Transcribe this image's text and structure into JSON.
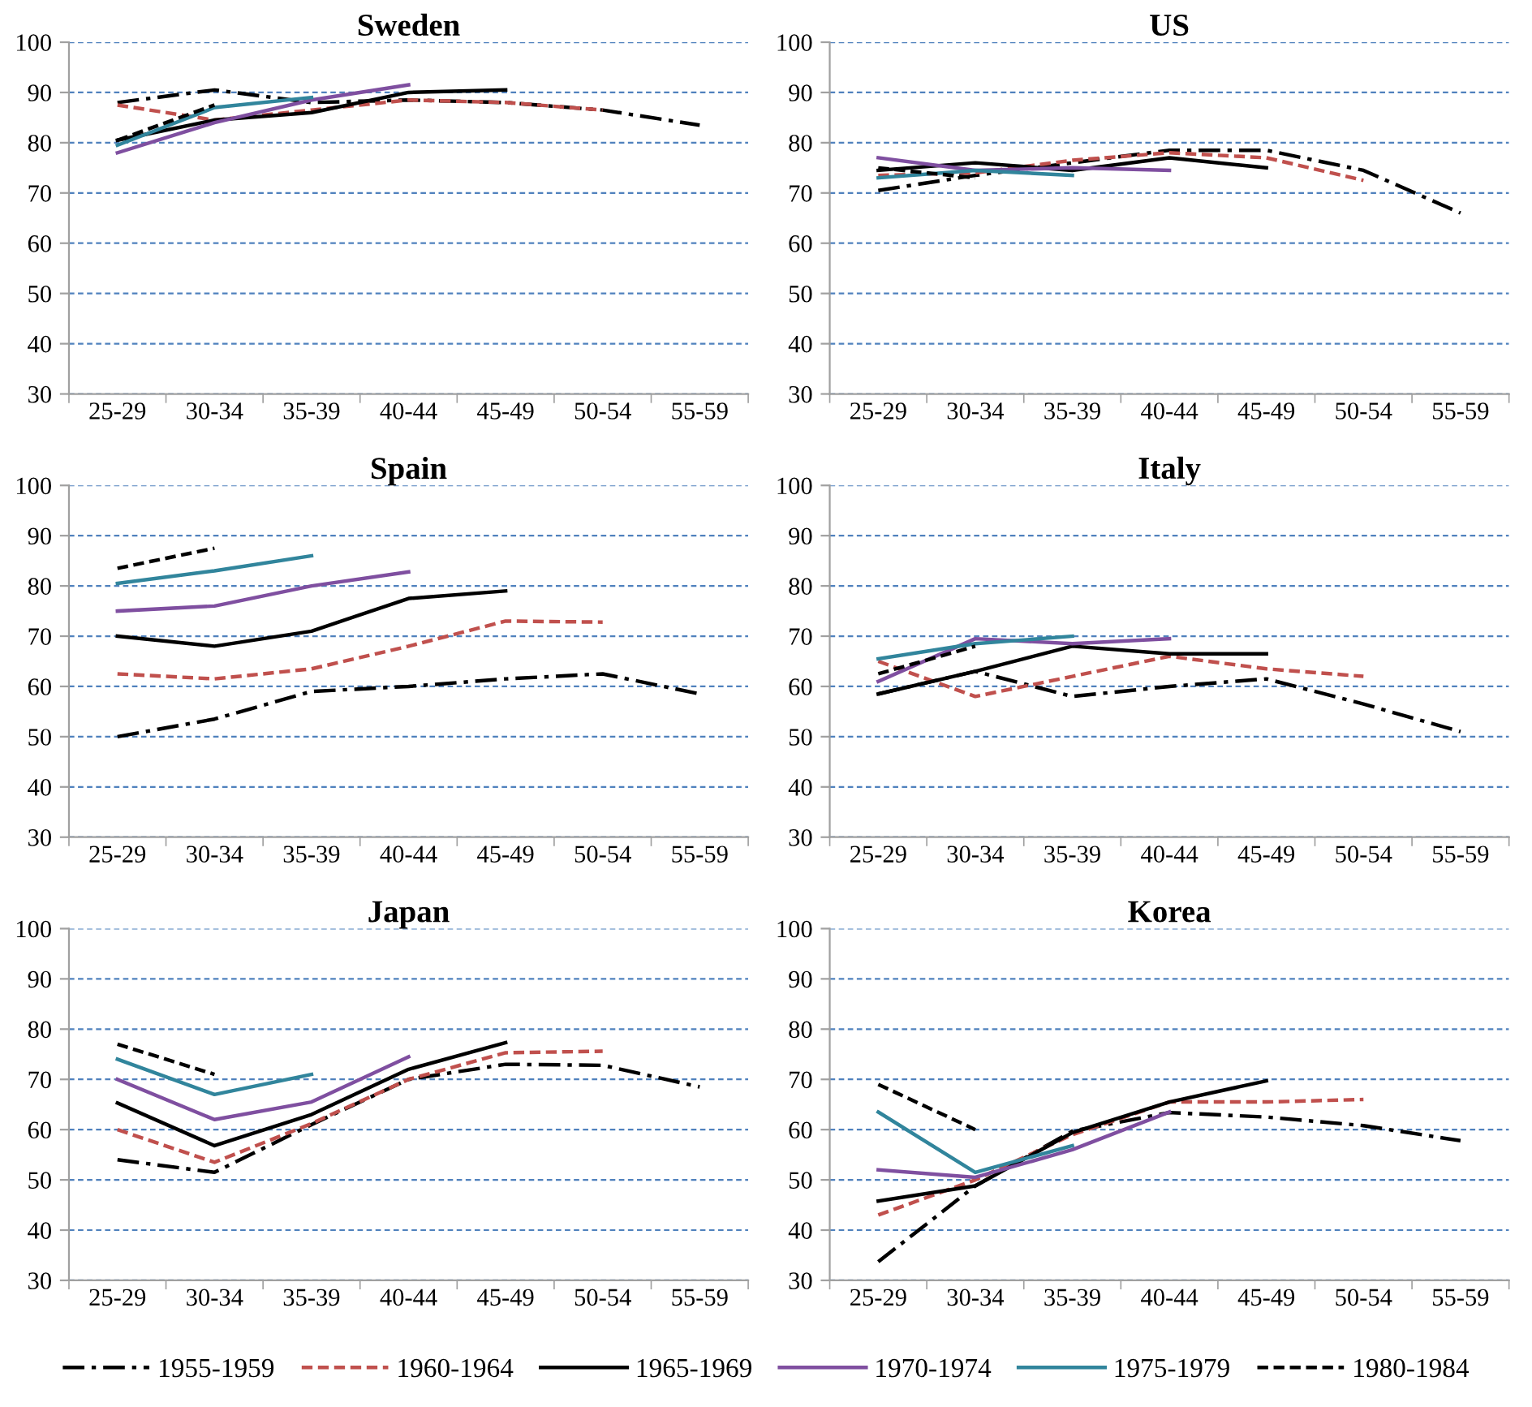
{
  "chart_data": [
    {
      "type": "line",
      "title": "Sweden",
      "categories": [
        "25-29",
        "30-34",
        "35-39",
        "40-44",
        "45-49",
        "50-54",
        "55-59"
      ],
      "ylim": [
        30,
        100
      ],
      "yticks": [
        30,
        40,
        50,
        60,
        70,
        80,
        90,
        100
      ],
      "grid": "y",
      "legend": "bottom",
      "series": [
        {
          "name": "1955-1959",
          "color": "#000000",
          "line_style": "dashdot",
          "values": [
            88,
            90.5,
            88,
            88.5,
            88,
            86.5,
            83.5
          ]
        },
        {
          "name": "1960-1964",
          "color": "#c0504d",
          "line_style": "dashed",
          "values": [
            87.5,
            84.5,
            86.5,
            88.5,
            88,
            86.5,
            null
          ]
        },
        {
          "name": "1965-1969",
          "color": "#000000",
          "line_style": "solid",
          "values": [
            80.5,
            84.5,
            86,
            90,
            90.5,
            null,
            null
          ]
        },
        {
          "name": "1970-1974",
          "color": "#7f4fa0",
          "line_style": "solid",
          "values": [
            78,
            84,
            88.5,
            91.5,
            null,
            null,
            null
          ]
        },
        {
          "name": "1975-1979",
          "color": "#31859c",
          "line_style": "solid",
          "values": [
            79.5,
            87,
            89,
            null,
            null,
            null,
            null
          ]
        },
        {
          "name": "1980-1984",
          "color": "#000000",
          "line_style": "dashed",
          "values": [
            80.5,
            87.5,
            null,
            null,
            null,
            null,
            null
          ]
        }
      ]
    },
    {
      "type": "line",
      "title": "US",
      "categories": [
        "25-29",
        "30-34",
        "35-39",
        "40-44",
        "45-49",
        "50-54",
        "55-59"
      ],
      "ylim": [
        30,
        100
      ],
      "yticks": [
        30,
        40,
        50,
        60,
        70,
        80,
        90,
        100
      ],
      "grid": "y",
      "series": [
        {
          "color": "#000000",
          "line_style": "dashdot",
          "values": [
            70.5,
            73.5,
            76,
            78.5,
            78.5,
            74.5,
            66
          ]
        },
        {
          "color": "#c0504d",
          "line_style": "dashed",
          "values": [
            73.5,
            74,
            76.5,
            78,
            77,
            72.5,
            null
          ]
        },
        {
          "color": "#000000",
          "line_style": "solid",
          "values": [
            74.5,
            76,
            74.5,
            77,
            75,
            null,
            null
          ]
        },
        {
          "color": "#7f4fa0",
          "line_style": "solid",
          "values": [
            77,
            74.5,
            75,
            74.5,
            null,
            null,
            null
          ]
        },
        {
          "color": "#31859c",
          "line_style": "solid",
          "values": [
            73,
            74.5,
            73.5,
            null,
            null,
            null,
            null
          ]
        },
        {
          "color": "#000000",
          "line_style": "dashed",
          "values": [
            75,
            73,
            null,
            null,
            null,
            null,
            null
          ]
        }
      ]
    },
    {
      "type": "line",
      "title": "Spain",
      "categories": [
        "25-29",
        "30-34",
        "35-39",
        "40-44",
        "45-49",
        "50-54",
        "55-59"
      ],
      "ylim": [
        30,
        100
      ],
      "yticks": [
        30,
        40,
        50,
        60,
        70,
        80,
        90,
        100
      ],
      "grid": "y",
      "series": [
        {
          "color": "#000000",
          "line_style": "dashdot",
          "values": [
            50,
            53.5,
            59,
            60,
            61.5,
            62.5,
            58.5
          ]
        },
        {
          "color": "#c0504d",
          "line_style": "dashed",
          "values": [
            62.5,
            61.5,
            63.5,
            68,
            73,
            72.8,
            null
          ]
        },
        {
          "color": "#000000",
          "line_style": "solid",
          "values": [
            70,
            68,
            71,
            77.5,
            79,
            null,
            null
          ]
        },
        {
          "color": "#7f4fa0",
          "line_style": "solid",
          "values": [
            75,
            76,
            80,
            82.8,
            null,
            null,
            null
          ]
        },
        {
          "color": "#31859c",
          "line_style": "solid",
          "values": [
            80.5,
            83,
            86,
            null,
            null,
            null,
            null
          ]
        },
        {
          "color": "#000000",
          "line_style": "dashed",
          "values": [
            83.5,
            87.5,
            null,
            null,
            null,
            null,
            null
          ]
        }
      ]
    },
    {
      "type": "line",
      "title": "Italy",
      "categories": [
        "25-29",
        "30-34",
        "35-39",
        "40-44",
        "45-49",
        "50-54",
        "55-59"
      ],
      "ylim": [
        30,
        100
      ],
      "yticks": [
        30,
        40,
        50,
        60,
        70,
        80,
        90,
        100
      ],
      "grid": "y",
      "series": [
        {
          "color": "#000000",
          "line_style": "dashdot",
          "values": [
            58.5,
            63,
            58,
            60,
            61.5,
            56.5,
            51
          ]
        },
        {
          "color": "#c0504d",
          "line_style": "dashed",
          "values": [
            65,
            58,
            62,
            66,
            63.5,
            62,
            null
          ]
        },
        {
          "color": "#000000",
          "line_style": "solid",
          "values": [
            58.5,
            63,
            68,
            66.5,
            66.5,
            null,
            null
          ]
        },
        {
          "color": "#7f4fa0",
          "line_style": "solid",
          "values": [
            61,
            69.5,
            68.5,
            69.5,
            null,
            null,
            null
          ]
        },
        {
          "color": "#31859c",
          "line_style": "solid",
          "values": [
            65.5,
            68.5,
            70,
            null,
            null,
            null,
            null
          ]
        },
        {
          "color": "#000000",
          "line_style": "dashed",
          "values": [
            62.5,
            68,
            null,
            null,
            null,
            null,
            null
          ]
        }
      ]
    },
    {
      "type": "line",
      "title": "Japan",
      "categories": [
        "25-29",
        "30-34",
        "35-39",
        "40-44",
        "45-49",
        "50-54",
        "55-59"
      ],
      "ylim": [
        30,
        100
      ],
      "yticks": [
        30,
        40,
        50,
        60,
        70,
        80,
        90,
        100
      ],
      "grid": "y",
      "series": [
        {
          "color": "#000000",
          "line_style": "dashdot",
          "values": [
            54,
            51.5,
            61,
            70,
            73,
            72.8,
            68.5
          ]
        },
        {
          "color": "#c0504d",
          "line_style": "dashed",
          "values": [
            60,
            53.5,
            61.2,
            70,
            75.3,
            75.6,
            null
          ]
        },
        {
          "color": "#000000",
          "line_style": "solid",
          "values": [
            65.3,
            56.8,
            63,
            72,
            77.3,
            null,
            null
          ]
        },
        {
          "color": "#7f4fa0",
          "line_style": "solid",
          "values": [
            70,
            62,
            65.5,
            74.5,
            null,
            null,
            null
          ]
        },
        {
          "color": "#31859c",
          "line_style": "solid",
          "values": [
            74,
            67,
            71,
            null,
            null,
            null,
            null
          ]
        },
        {
          "color": "#000000",
          "line_style": "dashed",
          "values": [
            77,
            71,
            null,
            null,
            null,
            null,
            null
          ]
        }
      ]
    },
    {
      "type": "line",
      "title": "Korea",
      "categories": [
        "25-29",
        "30-34",
        "35-39",
        "40-44",
        "45-49",
        "50-54",
        "55-59"
      ],
      "ylim": [
        30,
        100
      ],
      "yticks": [
        30,
        40,
        50,
        60,
        70,
        80,
        90,
        100
      ],
      "grid": "y",
      "series": [
        {
          "color": "#000000",
          "line_style": "dashdot",
          "values": [
            33.7,
            48.8,
            59.7,
            63.4,
            62.5,
            60.8,
            57.8
          ]
        },
        {
          "color": "#c0504d",
          "line_style": "dashed",
          "values": [
            43,
            50,
            59,
            65.5,
            65.5,
            66,
            null
          ]
        },
        {
          "color": "#000000",
          "line_style": "solid",
          "values": [
            45.8,
            48.8,
            59.4,
            65.5,
            69.7,
            null,
            null
          ]
        },
        {
          "color": "#7f4fa0",
          "line_style": "solid",
          "values": [
            52,
            50.5,
            56,
            63.5,
            null,
            null,
            null
          ]
        },
        {
          "color": "#31859c",
          "line_style": "solid",
          "values": [
            63.5,
            51.5,
            56.8,
            null,
            null,
            null,
            null
          ]
        },
        {
          "color": "#000000",
          "line_style": "dashed",
          "values": [
            69,
            60,
            null,
            null,
            null,
            null,
            null
          ]
        }
      ]
    }
  ]
}
